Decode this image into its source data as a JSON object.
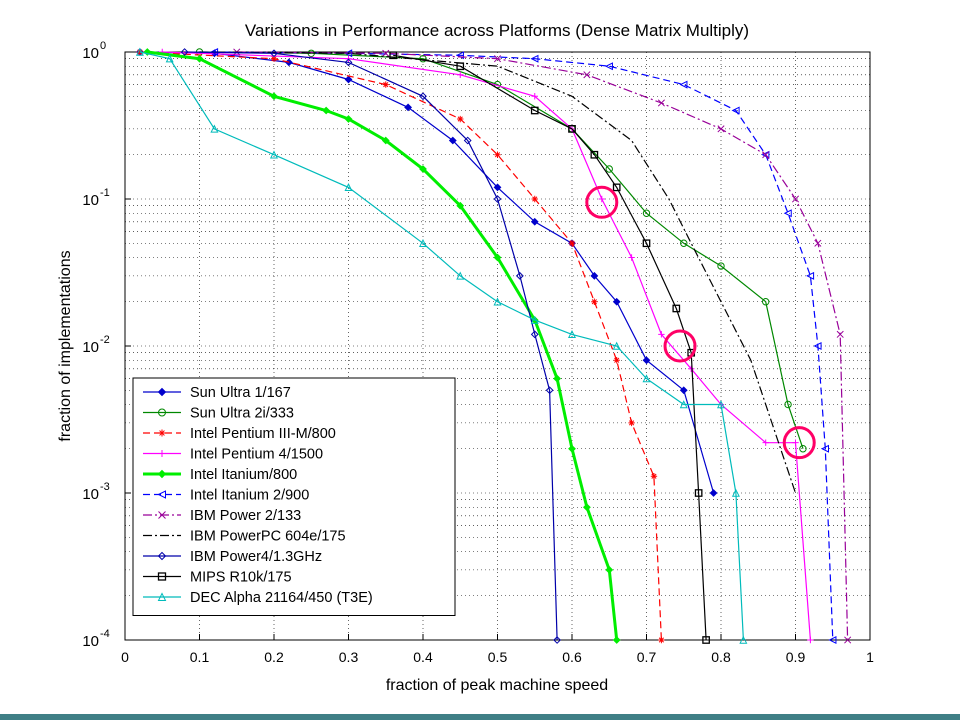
{
  "chart_data": {
    "type": "line",
    "title": "Variations in Performance across Platforms (Dense Matrix Multiply)",
    "xlabel": "fraction of peak machine speed",
    "ylabel": "fraction of implementations",
    "xlim": [
      0,
      1
    ],
    "ylim": [
      0.0001,
      1
    ],
    "y_scale": "log",
    "grid": true,
    "legend_position": "bottom-left",
    "x_ticks": [
      "0",
      "0.1",
      "0.2",
      "0.3",
      "0.4",
      "0.5",
      "0.6",
      "0.7",
      "0.8",
      "0.9",
      "1"
    ],
    "y_ticks": [
      {
        "base": "10",
        "exp": "0",
        "value": 1
      },
      {
        "base": "10",
        "exp": "-1",
        "value": 0.1
      },
      {
        "base": "10",
        "exp": "-2",
        "value": 0.01
      },
      {
        "base": "10",
        "exp": "-3",
        "value": 0.001
      },
      {
        "base": "10",
        "exp": "-4",
        "value": 0.0001
      }
    ],
    "series": [
      {
        "name": "Sun Ultra 1/167",
        "color": "#0000cc",
        "dash": "solid",
        "marker": "diamond-filled",
        "x": [
          0.02,
          0.12,
          0.22,
          0.3,
          0.38,
          0.44,
          0.5,
          0.55,
          0.6,
          0.63,
          0.66,
          0.7,
          0.75,
          0.79
        ],
        "y": [
          1,
          0.98,
          0.85,
          0.65,
          0.42,
          0.25,
          0.12,
          0.07,
          0.05,
          0.03,
          0.02,
          0.008,
          0.005,
          0.001
        ]
      },
      {
        "name": "Sun Ultra 2i/333",
        "color": "#008800",
        "dash": "solid",
        "marker": "circle",
        "x": [
          0.1,
          0.25,
          0.4,
          0.5,
          0.6,
          0.65,
          0.7,
          0.75,
          0.8,
          0.86,
          0.89,
          0.91
        ],
        "y": [
          1,
          0.98,
          0.9,
          0.6,
          0.3,
          0.16,
          0.08,
          0.05,
          0.035,
          0.02,
          0.004,
          0.002
        ]
      },
      {
        "name": "Intel Pentium III-M/800",
        "color": "#ff0000",
        "dash": "dashed",
        "marker": "star",
        "x": [
          0.02,
          0.2,
          0.35,
          0.45,
          0.5,
          0.55,
          0.6,
          0.63,
          0.66,
          0.68,
          0.71,
          0.72
        ],
        "y": [
          1,
          0.9,
          0.6,
          0.35,
          0.2,
          0.1,
          0.05,
          0.02,
          0.008,
          0.003,
          0.0013,
          0.0001
        ]
      },
      {
        "name": "Intel Pentium 4/1500",
        "color": "#ff00ff",
        "dash": "solid",
        "marker": "plus",
        "x": [
          0.05,
          0.3,
          0.45,
          0.55,
          0.6,
          0.64,
          0.68,
          0.72,
          0.76,
          0.8,
          0.86,
          0.9,
          0.92
        ],
        "y": [
          1,
          0.9,
          0.7,
          0.5,
          0.3,
          0.1,
          0.04,
          0.012,
          0.007,
          0.004,
          0.0022,
          0.0022,
          0.0001
        ]
      },
      {
        "name": "Intel Itanium/800",
        "color": "#00ee00",
        "dash": "solid",
        "marker": "diamond-filled",
        "x": [
          0.03,
          0.1,
          0.2,
          0.27,
          0.3,
          0.35,
          0.4,
          0.45,
          0.5,
          0.55,
          0.58,
          0.6,
          0.62,
          0.65,
          0.66
        ],
        "y": [
          1,
          0.9,
          0.5,
          0.4,
          0.35,
          0.25,
          0.16,
          0.09,
          0.04,
          0.015,
          0.006,
          0.002,
          0.0008,
          0.0003,
          0.0001
        ]
      },
      {
        "name": "Intel Itanium 2/900",
        "color": "#0000ff",
        "dash": "dashed",
        "marker": "triangle-left",
        "x": [
          0.12,
          0.3,
          0.45,
          0.55,
          0.65,
          0.75,
          0.82,
          0.86,
          0.89,
          0.92,
          0.93,
          0.94,
          0.95
        ],
        "y": [
          1,
          0.98,
          0.95,
          0.9,
          0.8,
          0.6,
          0.4,
          0.2,
          0.08,
          0.03,
          0.01,
          0.002,
          0.0001
        ]
      },
      {
        "name": "IBM Power 2/133",
        "color": "#990099",
        "dash": "dashdot",
        "marker": "x",
        "x": [
          0.15,
          0.35,
          0.5,
          0.62,
          0.72,
          0.8,
          0.86,
          0.9,
          0.93,
          0.96,
          0.97
        ],
        "y": [
          1,
          0.98,
          0.9,
          0.7,
          0.45,
          0.3,
          0.2,
          0.1,
          0.05,
          0.012,
          0.0001
        ]
      },
      {
        "name": "IBM PowerPC 604e/175",
        "color": "#000000",
        "dash": "dashdot",
        "marker": "none",
        "x": [
          0.1,
          0.3,
          0.5,
          0.6,
          0.68,
          0.73,
          0.76,
          0.8,
          0.84,
          0.88,
          0.9
        ],
        "y": [
          1,
          0.98,
          0.8,
          0.5,
          0.25,
          0.1,
          0.05,
          0.02,
          0.008,
          0.002,
          0.001
        ]
      },
      {
        "name": "IBM Power4/1.3GHz",
        "color": "#0000aa",
        "dash": "solid",
        "marker": "diamond-open",
        "x": [
          0.08,
          0.2,
          0.3,
          0.4,
          0.46,
          0.5,
          0.53,
          0.55,
          0.57,
          0.58
        ],
        "y": [
          1,
          0.98,
          0.85,
          0.5,
          0.25,
          0.1,
          0.03,
          0.012,
          0.005,
          0.0001
        ]
      },
      {
        "name": "MIPS R10k/175",
        "color": "#000000",
        "dash": "solid",
        "marker": "square",
        "x": [
          0.36,
          0.45,
          0.55,
          0.6,
          0.63,
          0.66,
          0.7,
          0.74,
          0.76,
          0.77,
          0.78
        ],
        "y": [
          0.95,
          0.8,
          0.4,
          0.3,
          0.2,
          0.12,
          0.05,
          0.018,
          0.009,
          0.001,
          0.0001
        ]
      },
      {
        "name": "DEC Alpha 21164/450 (T3E)",
        "color": "#00bbbb",
        "dash": "solid",
        "marker": "triangle-up",
        "x": [
          0.02,
          0.06,
          0.12,
          0.2,
          0.3,
          0.4,
          0.45,
          0.5,
          0.55,
          0.6,
          0.66,
          0.7,
          0.75,
          0.8,
          0.82,
          0.83
        ],
        "y": [
          1,
          0.9,
          0.3,
          0.2,
          0.12,
          0.05,
          0.03,
          0.02,
          0.015,
          0.012,
          0.01,
          0.006,
          0.004,
          0.004,
          0.001,
          0.0001
        ]
      }
    ],
    "annotations": [
      {
        "type": "circle",
        "x": 0.64,
        "y": 0.095,
        "color": "#ff0066"
      },
      {
        "type": "circle",
        "x": 0.745,
        "y": 0.01,
        "color": "#ff0066"
      },
      {
        "type": "circle",
        "x": 0.905,
        "y": 0.0022,
        "color": "#ff0066"
      }
    ]
  }
}
